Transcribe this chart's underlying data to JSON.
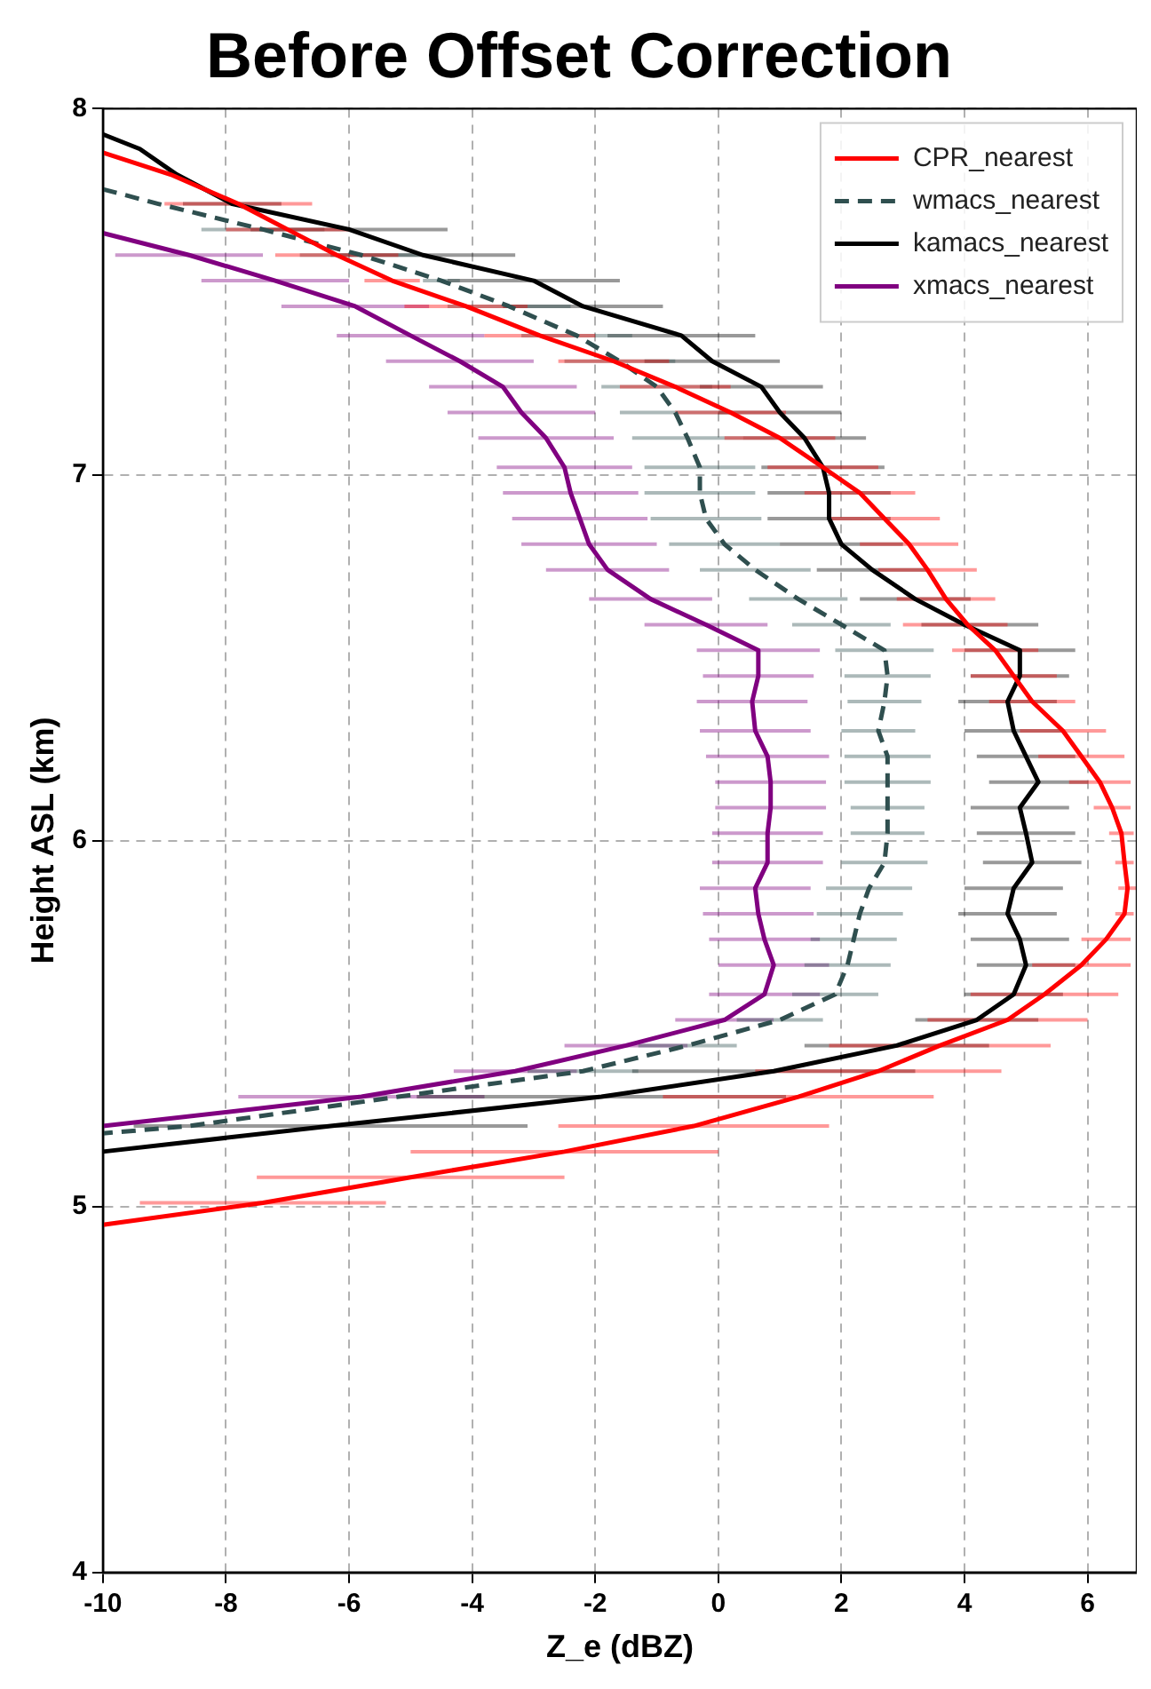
{
  "chart_data": {
    "type": "line",
    "title": "Before Offset Correction",
    "xlabel": "Z_e (dBZ)",
    "ylabel": "Height ASL (km)",
    "xlim": [
      -10,
      6.8
    ],
    "xticks": [
      -10,
      -8,
      -6,
      -4,
      -2,
      0,
      2,
      4,
      6
    ],
    "ylim": [
      4,
      8
    ],
    "yticks": [
      4,
      5,
      6,
      7,
      8
    ],
    "grid": true,
    "legend": "top right",
    "series": [
      {
        "name": "CPR_nearest",
        "color": "#ff0000",
        "line_style": "solid",
        "x": [
          -10,
          -8.9,
          -7.8,
          -7.0,
          -6.2,
          -5.3,
          -4.1,
          -2.9,
          -1.7,
          -0.7,
          0.2,
          1.0,
          1.7,
          2.3,
          2.7,
          3.1,
          3.4,
          3.7,
          4.05,
          4.5,
          4.8,
          5.1,
          5.6,
          5.9,
          6.2,
          6.4,
          6.55,
          6.6,
          6.65,
          6.6,
          6.3,
          5.9,
          5.3,
          4.7,
          3.6,
          2.6,
          1.3,
          -0.4,
          -2.5,
          -5.0,
          -7.4,
          -10
        ],
        "values": [
          7.88,
          7.82,
          7.74,
          7.67,
          7.6,
          7.53,
          7.46,
          7.38,
          7.31,
          7.24,
          7.17,
          7.1,
          7.02,
          6.95,
          6.88,
          6.81,
          6.74,
          6.66,
          6.59,
          6.52,
          6.45,
          6.38,
          6.3,
          6.23,
          6.16,
          6.09,
          6.02,
          5.94,
          5.87,
          5.8,
          5.73,
          5.66,
          5.58,
          5.51,
          5.44,
          5.37,
          5.3,
          5.22,
          5.15,
          5.08,
          5.01,
          4.95
        ],
        "xerrors": [
          null,
          null,
          1.2,
          1.0,
          1.0,
          0.45,
          1.0,
          0.9,
          0.9,
          0.9,
          0.9,
          0.9,
          0.9,
          0.9,
          0.9,
          0.8,
          0.8,
          0.8,
          [
            3.0,
            4.7
          ],
          0.7,
          0.7,
          0.7,
          0.7,
          0.7,
          0.5,
          0.3,
          0.2,
          0.15,
          0.15,
          0.15,
          0.4,
          0.8,
          1.2,
          1.3,
          1.8,
          2.0,
          2.2,
          2.2,
          2.5,
          2.5,
          2.0,
          null
        ]
      },
      {
        "name": "wmacs_nearest",
        "color": "#2f4f4f",
        "line_style": "dashed",
        "x": [
          -10,
          -9.1,
          -7.4,
          -5.8,
          -4.5,
          -3.4,
          -2.3,
          -1.6,
          -1.0,
          -0.7,
          -0.5,
          -0.3,
          -0.3,
          -0.2,
          0.1,
          0.6,
          1.3,
          2.0,
          2.7,
          2.75,
          2.7,
          2.6,
          2.75,
          2.75,
          2.75,
          2.75,
          2.7,
          2.45,
          2.3,
          2.2,
          2.1,
          1.9,
          1.0,
          -0.5,
          -2.2,
          -5.2,
          -8.6,
          -10
        ],
        "values": [
          7.78,
          7.74,
          7.67,
          7.6,
          7.53,
          7.46,
          7.38,
          7.31,
          7.24,
          7.17,
          7.1,
          7.02,
          6.95,
          6.88,
          6.81,
          6.74,
          6.66,
          6.59,
          6.52,
          6.45,
          6.38,
          6.3,
          6.23,
          6.16,
          6.09,
          6.02,
          5.94,
          5.87,
          5.8,
          5.73,
          5.66,
          5.58,
          5.51,
          5.44,
          5.37,
          5.3,
          5.22,
          5.2
        ],
        "xerrors": [
          null,
          null,
          1.0,
          1.0,
          0.3,
          1.0,
          0.9,
          0.9,
          0.9,
          0.9,
          0.9,
          0.9,
          0.9,
          0.9,
          0.9,
          0.9,
          0.8,
          0.8,
          0.8,
          0.7,
          0.6,
          0.6,
          0.7,
          0.7,
          0.6,
          0.6,
          0.7,
          0.7,
          0.7,
          0.7,
          0.7,
          0.7,
          0.7,
          0.8,
          0.9,
          null,
          null,
          null
        ]
      },
      {
        "name": "kamacs_nearest",
        "color": "#000000",
        "line_style": "solid",
        "x": [
          -10,
          -9.4,
          -8.8,
          -7.9,
          -6.0,
          -4.8,
          -3.0,
          -2.2,
          -0.6,
          -0.1,
          0.7,
          1.0,
          1.4,
          1.7,
          1.8,
          1.8,
          2.0,
          2.5,
          3.2,
          4.0,
          4.9,
          4.9,
          4.7,
          4.8,
          5.0,
          5.2,
          4.9,
          5.0,
          5.1,
          4.8,
          4.7,
          4.9,
          5.0,
          4.8,
          4.2,
          2.9,
          0.9,
          -1.9,
          -6.3,
          -10
        ],
        "values": [
          7.93,
          7.89,
          7.82,
          7.74,
          7.67,
          7.6,
          7.53,
          7.46,
          7.38,
          7.31,
          7.24,
          7.17,
          7.1,
          7.02,
          6.95,
          6.88,
          6.81,
          6.74,
          6.66,
          6.59,
          6.52,
          6.45,
          6.38,
          6.3,
          6.23,
          6.16,
          6.09,
          6.02,
          5.94,
          5.87,
          5.8,
          5.73,
          5.66,
          5.58,
          5.51,
          5.44,
          5.37,
          5.3,
          5.22,
          5.15
        ],
        "xerrors": [
          null,
          null,
          null,
          0.8,
          1.6,
          1.5,
          1.4,
          1.3,
          1.2,
          1.1,
          1.0,
          1.0,
          1.0,
          1.0,
          1.0,
          1.0,
          1.0,
          0.9,
          0.9,
          [
            3.3,
            5.2
          ],
          0.9,
          0.8,
          0.8,
          0.8,
          0.8,
          0.8,
          0.8,
          0.8,
          0.8,
          0.8,
          0.8,
          0.8,
          0.8,
          0.8,
          1.0,
          1.5,
          2.3,
          3.0,
          3.2,
          null
        ]
      },
      {
        "name": "xmacs_nearest",
        "color": "#800080",
        "line_style": "solid",
        "x": [
          -10,
          -8.6,
          -7.2,
          -5.9,
          -5.0,
          -4.2,
          -3.5,
          -3.2,
          -2.8,
          -2.5,
          -2.4,
          -2.25,
          -2.1,
          -1.8,
          -1.1,
          -0.2,
          0.65,
          0.65,
          0.55,
          0.6,
          0.8,
          0.85,
          0.85,
          0.8,
          0.8,
          0.6,
          0.65,
          0.75,
          0.9,
          0.75,
          0.1,
          -1.5,
          -3.3,
          -5.8,
          -10
        ],
        "values": [
          7.66,
          7.6,
          7.53,
          7.46,
          7.38,
          7.31,
          7.24,
          7.17,
          7.1,
          7.02,
          6.95,
          6.88,
          6.81,
          6.74,
          6.66,
          6.59,
          6.52,
          6.45,
          6.38,
          6.3,
          6.23,
          6.16,
          6.09,
          6.02,
          5.94,
          5.87,
          5.8,
          5.73,
          5.66,
          5.58,
          5.51,
          5.44,
          5.37,
          5.3,
          5.22
        ],
        "xerrors": [
          null,
          1.2,
          1.2,
          1.2,
          1.2,
          1.2,
          1.2,
          1.2,
          1.1,
          1.1,
          1.1,
          1.1,
          1.1,
          1.0,
          1.0,
          1.0,
          1.0,
          0.9,
          0.9,
          0.9,
          1.0,
          0.9,
          0.9,
          0.9,
          0.9,
          0.9,
          0.9,
          0.9,
          0.9,
          0.9,
          0.8,
          1.0,
          1.0,
          2.0,
          null
        ]
      }
    ]
  }
}
